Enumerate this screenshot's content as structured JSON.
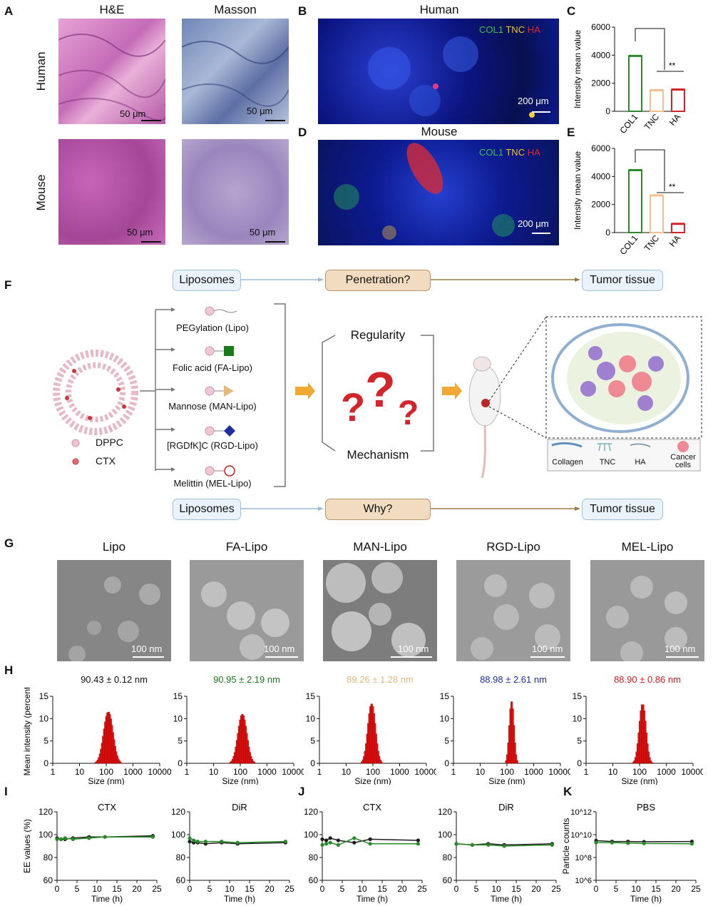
{
  "panel_letters": {
    "a": "A",
    "b": "B",
    "c": "C",
    "d": "D",
    "e": "E",
    "f": "F",
    "g": "G",
    "h": "H",
    "i": "I",
    "j": "J",
    "k": "K"
  },
  "panelA": {
    "col_he": "H&E",
    "col_masson": "Masson",
    "row_human": "Human",
    "row_mouse": "Mouse",
    "scale": "50 μm"
  },
  "panelB": {
    "title": "Human",
    "scale": "200 μm",
    "legend": [
      "COL1",
      "TNC",
      "HA"
    ]
  },
  "panelD": {
    "title": "Mouse",
    "scale": "200 μm",
    "legend": [
      "COL1",
      "TNC",
      "HA"
    ]
  },
  "colors": {
    "col1": "#2a8a2a",
    "tnc": "#f6c08a",
    "ha": "#d2232a",
    "fa": "#1a7a1a",
    "man": "#e8b87a",
    "rgd": "#1c2ea0",
    "mel": "#cc1f1f"
  },
  "panelF": {
    "top_left": "Liposomes",
    "top_mid": "Penetration?",
    "top_right": "Tumor tissue",
    "bottom_left": "Liposomes",
    "bottom_mid": "Why?",
    "bottom_right": "Tumor tissue",
    "lipos": [
      "PEGylation (Lipo)",
      "Folic acid (FA-Lipo)",
      "Mannose (MAN-Lipo)",
      "[RGDfK]C (RGD-Lipo)",
      "Melittin (MEL-Lipo)"
    ],
    "dppc": "DPPC",
    "ctx": "CTX",
    "regularity": "Regularity",
    "mechanism": "Mechanism",
    "legend": [
      "Collagen",
      "TNC",
      "HA",
      "Cancer cells"
    ]
  },
  "panelG": {
    "titles": [
      "Lipo",
      "FA-Lipo",
      "MAN-Lipo",
      "RGD-Lipo",
      "MEL-Lipo"
    ],
    "scale": "100 nm"
  },
  "panelH": {
    "sizes": [
      "90.43 ± 0.12 nm",
      "90.95 ± 2.19 nm",
      "89.26 ± 1.28 nm",
      "88.98 ± 2.61 nm",
      "88.90 ± 0.86 nm"
    ]
  },
  "chart_data": [
    {
      "type": "bar",
      "panel": "C",
      "categories": [
        "COL1",
        "TNC",
        "HA"
      ],
      "values": [
        3950,
        1500,
        1550
      ],
      "ylabel": "Intensity mean value",
      "ylim": [
        0,
        6000
      ],
      "yticks": [
        0,
        2000,
        4000,
        6000
      ],
      "annotation": "**"
    },
    {
      "type": "bar",
      "panel": "E",
      "categories": [
        "COL1",
        "TNC",
        "HA"
      ],
      "values": [
        4450,
        2650,
        620
      ],
      "ylabel": "Intensity mean value",
      "ylim": [
        0,
        6000
      ],
      "yticks": [
        0,
        2000,
        4000,
        6000
      ],
      "annotation": "**"
    },
    {
      "type": "bar",
      "panel": "H",
      "xlabel": "Size (nm)",
      "ylabel": "Mean intensity (percent)",
      "x_scale": "log",
      "xticks": [
        "1",
        "10",
        "100",
        "1000",
        "10000"
      ],
      "yticks": [
        0,
        5,
        10,
        15
      ],
      "ylim": [
        0,
        15
      ],
      "series": [
        {
          "peak_nm": 120,
          "peak_value": 11.5,
          "width": 0.25
        },
        {
          "peak_nm": 120,
          "peak_value": 11.0,
          "width": 0.24
        },
        {
          "peak_nm": 90,
          "peak_value": 13.3,
          "width": 0.2
        },
        {
          "peak_nm": 150,
          "peak_value": 13.8,
          "width": 0.12
        },
        {
          "peak_nm": 130,
          "peak_value": 13.3,
          "width": 0.18
        }
      ]
    },
    {
      "type": "line",
      "panel": "I",
      "title": "CTX",
      "xlabel": "Time (h)",
      "ylabel": "EE values (%)",
      "xlim": [
        0,
        25
      ],
      "ylim": [
        60,
        120
      ],
      "yticks": [
        60,
        80,
        100,
        120
      ],
      "x": [
        0,
        1,
        2,
        4,
        8,
        12,
        24
      ],
      "series": [
        {
          "values": [
            97,
            96,
            96,
            97,
            98,
            98,
            99
          ]
        },
        {
          "values": [
            96,
            96,
            97,
            96,
            97,
            98,
            98
          ]
        }
      ]
    },
    {
      "type": "line",
      "panel": "I",
      "title": "DiR",
      "xlabel": "Time (h)",
      "xlim": [
        0,
        25
      ],
      "ylim": [
        60,
        120
      ],
      "yticks": [
        60,
        80,
        100,
        120
      ],
      "x": [
        0,
        1,
        2,
        4,
        8,
        12,
        24
      ],
      "series": [
        {
          "values": [
            94,
            93,
            93,
            92,
            93,
            92,
            93
          ]
        },
        {
          "values": [
            97,
            95,
            94,
            94,
            94,
            93,
            94
          ]
        }
      ]
    },
    {
      "type": "line",
      "panel": "J",
      "title": "CTX",
      "xlabel": "Time (h)",
      "xlim": [
        0,
        25
      ],
      "ylim": [
        60,
        120
      ],
      "yticks": [
        60,
        80,
        100,
        120
      ],
      "x": [
        0,
        1,
        2,
        4,
        8,
        12,
        24
      ],
      "series": [
        {
          "values": [
            96,
            95,
            97,
            95,
            93,
            96,
            95
          ]
        },
        {
          "values": [
            91,
            92,
            93,
            91,
            97,
            92,
            92
          ]
        }
      ]
    },
    {
      "type": "line",
      "panel": "J",
      "title": "DiR",
      "xlabel": "Time (h)",
      "xlim": [
        0,
        25
      ],
      "ylim": [
        60,
        120
      ],
      "yticks": [
        60,
        80,
        100,
        120
      ],
      "x": [
        0,
        4,
        8,
        12,
        24
      ],
      "series": [
        {
          "values": [
            92,
            91,
            92,
            91,
            92
          ]
        },
        {
          "values": [
            92,
            91,
            91,
            90,
            91
          ]
        }
      ]
    },
    {
      "type": "line",
      "panel": "K",
      "title": "PBS",
      "xlabel": "Time (h)",
      "ylabel": "Particle counts",
      "y_scale": "log",
      "xlim": [
        0,
        25
      ],
      "yticks": [
        "10^6",
        "10^8",
        "10^10",
        "10^12"
      ],
      "x": [
        0,
        4,
        8,
        12,
        24
      ],
      "series": [
        {
          "values": [
            3000000000.0,
            2500000000.0,
            2500000000.0,
            2400000000.0,
            2500000000.0
          ]
        },
        {
          "values": [
            2000000000.0,
            2000000000.0,
            1800000000.0,
            1700000000.0,
            1600000000.0
          ]
        }
      ]
    }
  ]
}
